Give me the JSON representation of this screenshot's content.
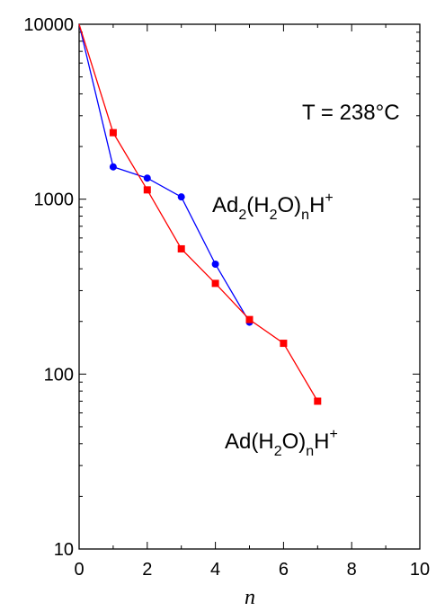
{
  "chart_data": {
    "type": "line",
    "title": "",
    "xlabel": "n",
    "ylabel": "",
    "xlim": [
      0,
      10
    ],
    "ylim": [
      10,
      10000
    ],
    "yscale": "log",
    "grid": false,
    "x_ticks": [
      0,
      2,
      4,
      6,
      8,
      10
    ],
    "x_tick_labels": [
      "0",
      "2",
      "4",
      "6",
      "8",
      "10"
    ],
    "y_ticks": [
      10,
      100,
      1000,
      10000
    ],
    "y_tick_labels": [
      "10",
      "100",
      "1000",
      "10000"
    ],
    "series": [
      {
        "name": "Ad2(H2O)nH+",
        "color": "#0000ff",
        "marker": "circle",
        "x": [
          0,
          1,
          2,
          3,
          4,
          5
        ],
        "y": [
          10000,
          1530,
          1320,
          1030,
          425,
          198
        ]
      },
      {
        "name": "Ad(H2O)nH+",
        "color": "#ff0000",
        "marker": "square",
        "x": [
          0,
          1,
          2,
          3,
          4,
          5,
          6,
          7
        ],
        "y": [
          10000,
          2400,
          1130,
          520,
          330,
          205,
          150,
          70
        ]
      }
    ],
    "annotations": {
      "temperature": "T = 238°C",
      "ad2": {
        "base": "Ad",
        "s1": "2",
        "mid1": "(H",
        "s2": "2",
        "mid2": "O)",
        "s3": "n",
        "mid3": "H",
        "sup": "+"
      },
      "ad1": {
        "base": "Ad(H",
        "s1": "2",
        "mid1": "O)",
        "s2": "n",
        "mid2": "H",
        "sup": "+"
      }
    }
  }
}
